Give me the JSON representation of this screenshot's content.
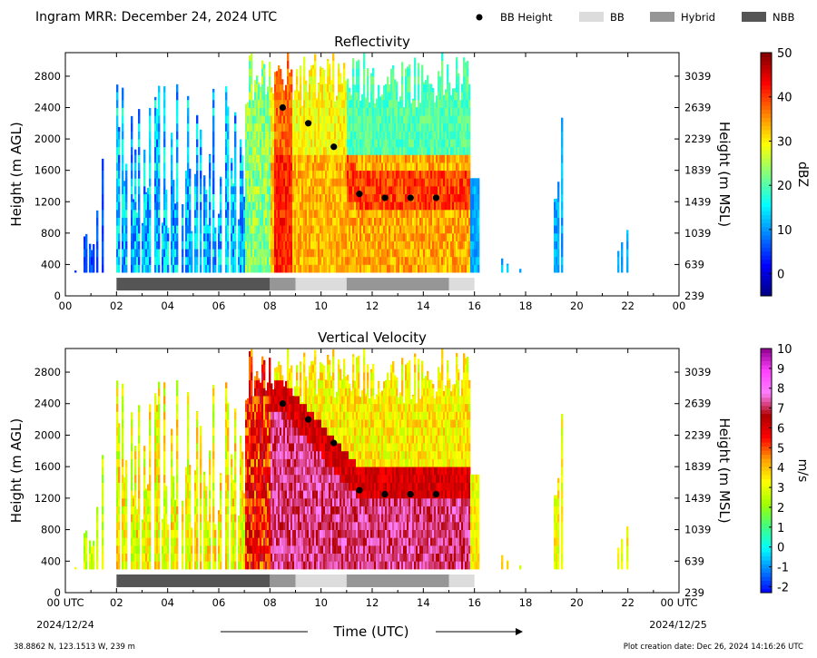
{
  "header": {
    "title": "Ingram MRR:  December 24, 2024 UTC",
    "legend": [
      {
        "label": "BB Height",
        "marker": "dot",
        "color": "#000000"
      },
      {
        "label": "BB",
        "marker": "box",
        "color": "#dcdcdc"
      },
      {
        "label": "Hybrid",
        "marker": "box",
        "color": "#969696"
      },
      {
        "label": "NBB",
        "marker": "box",
        "color": "#555555"
      }
    ]
  },
  "chart_data": [
    {
      "type": "heatmap",
      "title": "Reflectivity",
      "ylabel": "Height (m AGL)",
      "y2label": "Height (m MSL)",
      "xlim": [
        0,
        24
      ],
      "ylim": [
        0,
        3100
      ],
      "x_ticks": [
        "00",
        "02",
        "04",
        "06",
        "08",
        "10",
        "12",
        "14",
        "16",
        "18",
        "20",
        "22",
        "00"
      ],
      "y_ticks": [
        0,
        400,
        800,
        1200,
        1600,
        2000,
        2400,
        2800
      ],
      "y2_ticks": [
        239,
        639,
        1039,
        1439,
        1839,
        2239,
        2639,
        3039
      ],
      "colorbar": {
        "label": "dBZ",
        "min": -5,
        "max": 50,
        "ticks": [
          0,
          10,
          20,
          30,
          40,
          50
        ],
        "colors": [
          "#000080",
          "#0000ff",
          "#0080ff",
          "#00ffff",
          "#80ff80",
          "#ffff00",
          "#ff8000",
          "#ff0000",
          "#800000"
        ]
      },
      "bb_height": {
        "x": [
          8.5,
          9.5,
          10.5,
          11.5,
          12.5,
          13.5,
          14.5
        ],
        "y": [
          2400,
          2200,
          1900,
          1300,
          1250,
          1250,
          1250
        ]
      },
      "bb_type": [
        {
          "start": 2,
          "end": 8,
          "type": "NBB"
        },
        {
          "start": 8,
          "end": 9,
          "type": "Hybrid"
        },
        {
          "start": 9,
          "end": 11,
          "type": "BB"
        },
        {
          "start": 11,
          "end": 15,
          "type": "Hybrid"
        },
        {
          "start": 15,
          "end": 16,
          "type": "BB"
        }
      ]
    },
    {
      "type": "heatmap",
      "title": "Vertical Velocity",
      "ylabel": "Height (m AGL)",
      "y2label": "Height (m MSL)",
      "xlabel": "Time (UTC)",
      "xlim": [
        0,
        24
      ],
      "ylim": [
        0,
        3100
      ],
      "x_ticks": [
        "00 UTC",
        "02",
        "04",
        "06",
        "08",
        "10",
        "12",
        "14",
        "16",
        "18",
        "20",
        "22",
        "00  UTC"
      ],
      "x_date_start": "2024/12/24",
      "x_date_end": "2024/12/25",
      "y_ticks": [
        0,
        400,
        800,
        1200,
        1600,
        2000,
        2400,
        2800
      ],
      "y2_ticks": [
        239,
        639,
        1039,
        1439,
        1839,
        2239,
        2639,
        3039
      ],
      "colorbar": {
        "label": "m/s",
        "min": -2.3,
        "max": 10,
        "ticks": [
          -2,
          -1,
          0,
          1,
          2,
          3,
          4,
          5,
          6,
          7,
          8,
          9,
          10
        ],
        "colors": [
          "#0000ff",
          "#0080ff",
          "#00ffff",
          "#40ff80",
          "#a0ff00",
          "#ffff00",
          "#ffa000",
          "#ff0000",
          "#b00000",
          "#ff80ff",
          "#ff40ff",
          "#900090"
        ]
      },
      "bb_height": {
        "x": [
          8.5,
          9.5,
          10.5,
          11.5,
          12.5,
          13.5,
          14.5
        ],
        "y": [
          2400,
          2200,
          1900,
          1300,
          1250,
          1250,
          1250
        ]
      },
      "bb_type": [
        {
          "start": 2,
          "end": 8,
          "type": "NBB"
        },
        {
          "start": 8,
          "end": 9,
          "type": "Hybrid"
        },
        {
          "start": 9,
          "end": 11,
          "type": "BB"
        },
        {
          "start": 11,
          "end": 15,
          "type": "Hybrid"
        },
        {
          "start": 15,
          "end": 16,
          "type": "BB"
        }
      ]
    }
  ],
  "footer": {
    "location": "38.8862 N, 123.1513 W, 239 m",
    "creation": "Plot creation date: Dec 26, 2024 14:16:26 UTC"
  }
}
